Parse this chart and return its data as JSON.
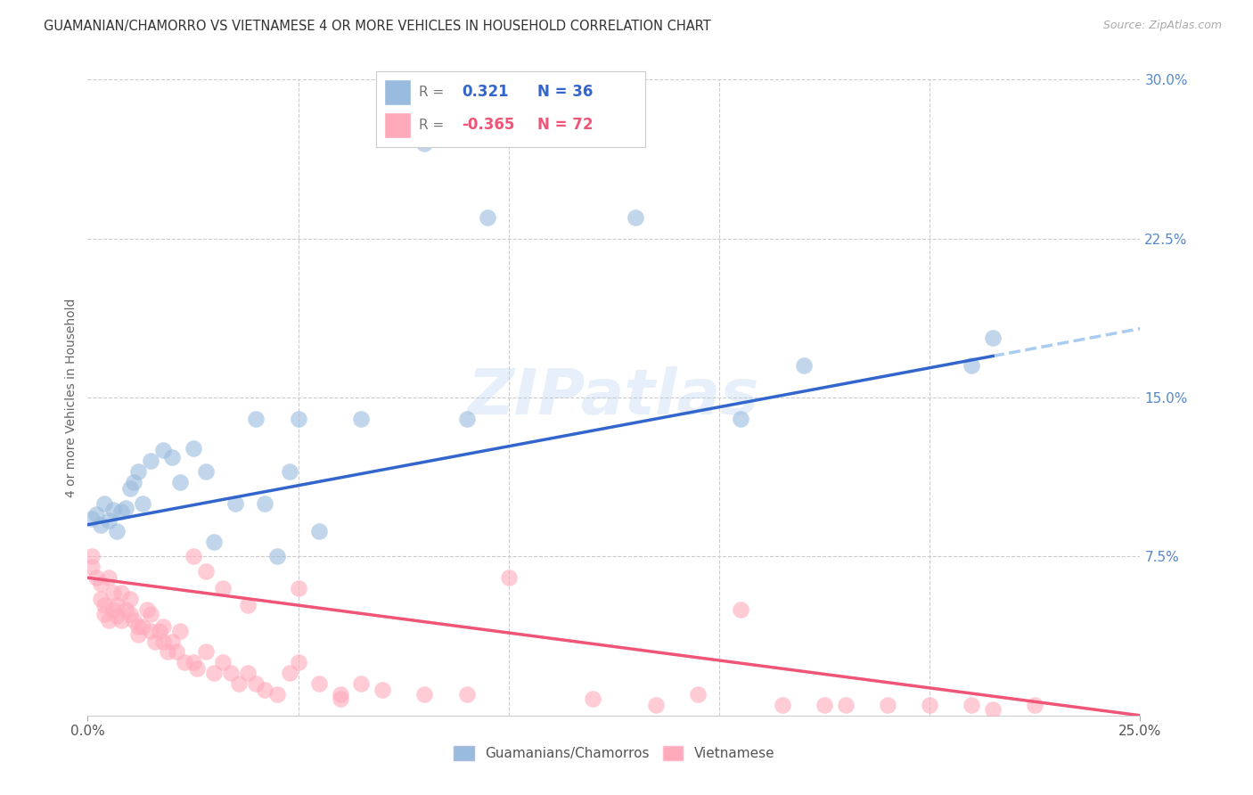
{
  "title": "GUAMANIAN/CHAMORRO VS VIETNAMESE 4 OR MORE VEHICLES IN HOUSEHOLD CORRELATION CHART",
  "source": "Source: ZipAtlas.com",
  "ylabel": "4 or more Vehicles in Household",
  "xlim": [
    0.0,
    0.25
  ],
  "ylim": [
    0.0,
    0.3
  ],
  "blue_color": "#99bbdd",
  "pink_color": "#ffaabb",
  "blue_line_color": "#3366cc",
  "pink_line_color": "#ee5577",
  "dashed_line_color": "#aaccee",
  "watermark": "ZIPatlas",
  "guamanian_R": 0.321,
  "guamanian_N": 36,
  "vietnamese_R": -0.365,
  "vietnamese_N": 72,
  "blue_intercept": 0.09,
  "blue_slope": 0.37,
  "pink_intercept": 0.065,
  "pink_slope": -0.26,
  "guamanian_x": [
    0.001,
    0.002,
    0.003,
    0.004,
    0.005,
    0.006,
    0.007,
    0.008,
    0.009,
    0.01,
    0.011,
    0.012,
    0.013,
    0.015,
    0.018,
    0.02,
    0.022,
    0.025,
    0.028,
    0.03,
    0.035,
    0.04,
    0.042,
    0.045,
    0.048,
    0.05,
    0.055,
    0.065,
    0.08,
    0.09,
    0.095,
    0.13,
    0.155,
    0.17,
    0.21,
    0.215
  ],
  "guamanian_y": [
    0.093,
    0.095,
    0.09,
    0.1,
    0.092,
    0.097,
    0.087,
    0.096,
    0.098,
    0.107,
    0.11,
    0.115,
    0.1,
    0.12,
    0.125,
    0.122,
    0.11,
    0.126,
    0.115,
    0.082,
    0.1,
    0.14,
    0.1,
    0.075,
    0.115,
    0.14,
    0.087,
    0.14,
    0.27,
    0.14,
    0.235,
    0.235,
    0.14,
    0.165,
    0.165,
    0.178
  ],
  "vietnamese_x": [
    0.001,
    0.001,
    0.002,
    0.003,
    0.003,
    0.004,
    0.004,
    0.005,
    0.005,
    0.006,
    0.006,
    0.007,
    0.007,
    0.008,
    0.008,
    0.009,
    0.01,
    0.01,
    0.011,
    0.012,
    0.012,
    0.013,
    0.014,
    0.015,
    0.015,
    0.016,
    0.017,
    0.018,
    0.018,
    0.019,
    0.02,
    0.021,
    0.022,
    0.023,
    0.025,
    0.026,
    0.028,
    0.03,
    0.032,
    0.034,
    0.036,
    0.038,
    0.04,
    0.042,
    0.045,
    0.048,
    0.05,
    0.055,
    0.06,
    0.065,
    0.025,
    0.028,
    0.032,
    0.038,
    0.05,
    0.06,
    0.07,
    0.08,
    0.09,
    0.1,
    0.12,
    0.135,
    0.145,
    0.155,
    0.165,
    0.175,
    0.18,
    0.19,
    0.2,
    0.21,
    0.215,
    0.225
  ],
  "vietnamese_y": [
    0.075,
    0.07,
    0.065,
    0.062,
    0.055,
    0.052,
    0.048,
    0.065,
    0.045,
    0.058,
    0.05,
    0.052,
    0.047,
    0.058,
    0.045,
    0.05,
    0.048,
    0.055,
    0.045,
    0.042,
    0.038,
    0.042,
    0.05,
    0.04,
    0.048,
    0.035,
    0.04,
    0.042,
    0.035,
    0.03,
    0.035,
    0.03,
    0.04,
    0.025,
    0.025,
    0.022,
    0.03,
    0.02,
    0.025,
    0.02,
    0.015,
    0.02,
    0.015,
    0.012,
    0.01,
    0.02,
    0.025,
    0.015,
    0.01,
    0.015,
    0.075,
    0.068,
    0.06,
    0.052,
    0.06,
    0.008,
    0.012,
    0.01,
    0.01,
    0.065,
    0.008,
    0.005,
    0.01,
    0.05,
    0.005,
    0.005,
    0.005,
    0.005,
    0.005,
    0.005,
    0.003,
    0.005
  ]
}
